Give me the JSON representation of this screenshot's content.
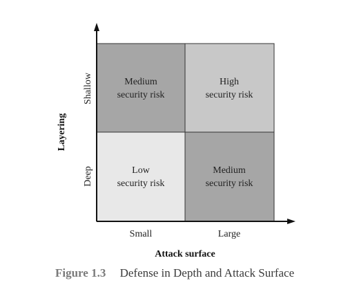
{
  "axes": {
    "x_title": "Attack surface",
    "y_title": "Layering",
    "x_ticks": [
      "Small",
      "Large"
    ],
    "y_ticks": [
      "Shallow",
      "Deep"
    ]
  },
  "quadrants": {
    "top_left": {
      "line1": "Medium",
      "line2": "security risk",
      "fill": "#a6a6a6"
    },
    "top_right": {
      "line1": "High",
      "line2": "security risk",
      "fill": "#c8c8c8"
    },
    "bottom_left": {
      "line1": "Low",
      "line2": "security risk",
      "fill": "#e8e8e8"
    },
    "bottom_right": {
      "line1": "Medium",
      "line2": "security risk",
      "fill": "#a6a6a6"
    }
  },
  "caption": {
    "label": "Figure 1.3",
    "title": "Defense in Depth and Attack Surface",
    "label_color": "#7a7a7a",
    "title_color": "#3a3a3a"
  }
}
